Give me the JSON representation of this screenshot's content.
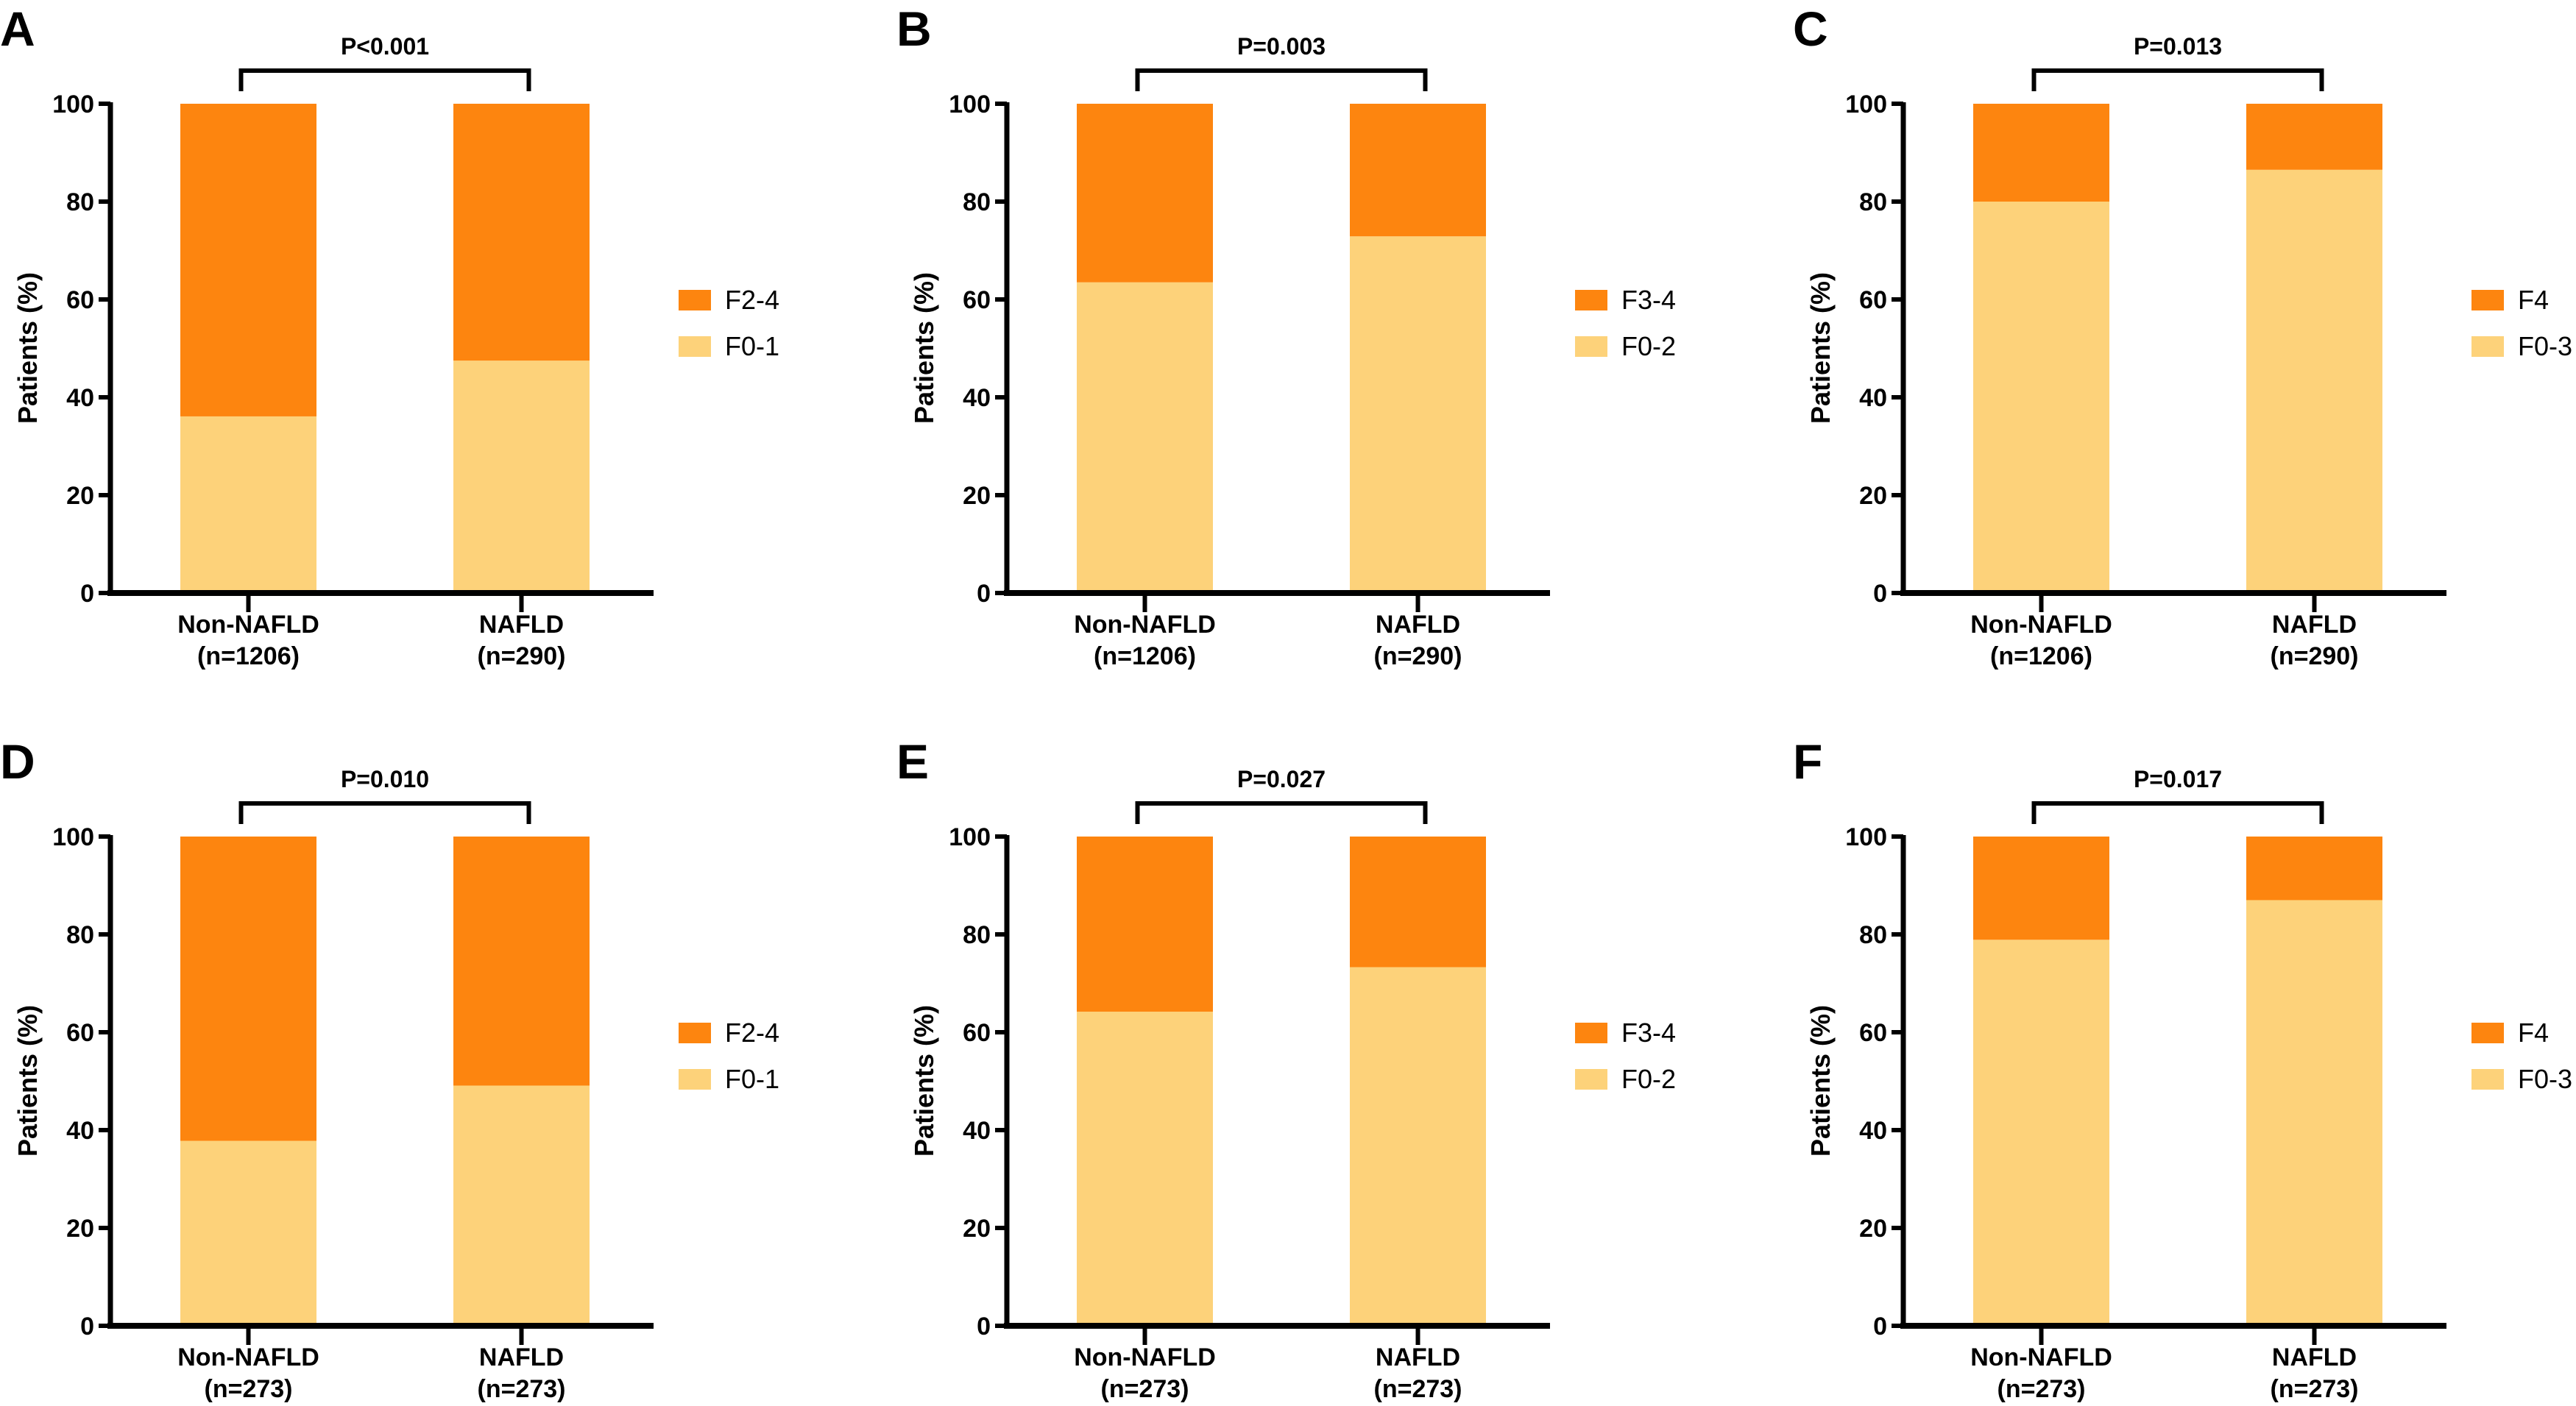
{
  "colors": {
    "upper": "#fd850f",
    "lower": "#fdd27a",
    "axis": "#000000"
  },
  "chart_data": [
    {
      "type": "bar",
      "stacked": true,
      "panel": "A",
      "p_value": "P<0.001",
      "ylabel": "Patients (%)",
      "ylim": [
        0,
        100
      ],
      "yticks": [
        "0",
        "20",
        "40",
        "60",
        "80",
        "100"
      ],
      "categories": [
        [
          "Non-NAFLD",
          "(n=1206)"
        ],
        [
          "NAFLD",
          "(n=290)"
        ]
      ],
      "series": [
        {
          "name": "F0-1",
          "values": [
            36.1,
            47.5
          ]
        },
        {
          "name": "F2-4",
          "values": [
            63.9,
            52.5
          ]
        }
      ],
      "legend": [
        "F2-4",
        "F0-1"
      ],
      "legend_position": "right"
    },
    {
      "type": "bar",
      "stacked": true,
      "panel": "B",
      "p_value": "P=0.003",
      "ylabel": "Patients (%)",
      "ylim": [
        0,
        100
      ],
      "yticks": [
        "0",
        "20",
        "40",
        "60",
        "80",
        "100"
      ],
      "categories": [
        [
          "Non-NAFLD",
          "(n=1206)"
        ],
        [
          "NAFLD",
          "(n=290)"
        ]
      ],
      "series": [
        {
          "name": "F0-2",
          "values": [
            63.5,
            72.9
          ]
        },
        {
          "name": "F3-4",
          "values": [
            36.5,
            27.1
          ]
        }
      ],
      "legend": [
        "F3-4",
        "F0-2"
      ],
      "legend_position": "right"
    },
    {
      "type": "bar",
      "stacked": true,
      "panel": "C",
      "p_value": "P=0.013",
      "ylabel": "Patients (%)",
      "ylim": [
        0,
        100
      ],
      "yticks": [
        "0",
        "20",
        "40",
        "60",
        "80",
        "100"
      ],
      "categories": [
        [
          "Non-NAFLD",
          "(n=1206)"
        ],
        [
          "NAFLD",
          "(n=290)"
        ]
      ],
      "series": [
        {
          "name": "F0-3",
          "values": [
            80.0,
            86.5
          ]
        },
        {
          "name": "F4",
          "values": [
            20.0,
            13.5
          ]
        }
      ],
      "legend": [
        "F4",
        "F0-3"
      ],
      "legend_position": "right"
    },
    {
      "type": "bar",
      "stacked": true,
      "panel": "D",
      "p_value": "P=0.010",
      "ylabel": "Patients (%)",
      "ylim": [
        0,
        100
      ],
      "yticks": [
        "0",
        "20",
        "40",
        "60",
        "80",
        "100"
      ],
      "categories": [
        [
          "Non-NAFLD",
          "(n=273)"
        ],
        [
          "NAFLD",
          "(n=273)"
        ]
      ],
      "series": [
        {
          "name": "F0-1",
          "values": [
            37.8,
            49.1
          ]
        },
        {
          "name": "F2-4",
          "values": [
            62.2,
            50.9
          ]
        }
      ],
      "legend": [
        "F2-4",
        "F0-1"
      ],
      "legend_position": "right"
    },
    {
      "type": "bar",
      "stacked": true,
      "panel": "E",
      "p_value": "P=0.027",
      "ylabel": "Patients (%)",
      "ylim": [
        0,
        100
      ],
      "yticks": [
        "0",
        "20",
        "40",
        "60",
        "80",
        "100"
      ],
      "categories": [
        [
          "Non-NAFLD",
          "(n=273)"
        ],
        [
          "NAFLD",
          "(n=273)"
        ]
      ],
      "series": [
        {
          "name": "F0-2",
          "values": [
            64.2,
            73.3
          ]
        },
        {
          "name": "F3-4",
          "values": [
            35.8,
            26.7
          ]
        }
      ],
      "legend": [
        "F3-4",
        "F0-2"
      ],
      "legend_position": "right"
    },
    {
      "type": "bar",
      "stacked": true,
      "panel": "F",
      "p_value": "P=0.017",
      "ylabel": "Patients (%)",
      "ylim": [
        0,
        100
      ],
      "yticks": [
        "0",
        "20",
        "40",
        "60",
        "80",
        "100"
      ],
      "categories": [
        [
          "Non-NAFLD",
          "(n=273)"
        ],
        [
          "NAFLD",
          "(n=273)"
        ]
      ],
      "series": [
        {
          "name": "F0-3",
          "values": [
            78.9,
            87.0
          ]
        },
        {
          "name": "F4",
          "values": [
            21.1,
            13.0
          ]
        }
      ],
      "legend": [
        "F4",
        "F0-3"
      ],
      "legend_position": "right"
    }
  ]
}
